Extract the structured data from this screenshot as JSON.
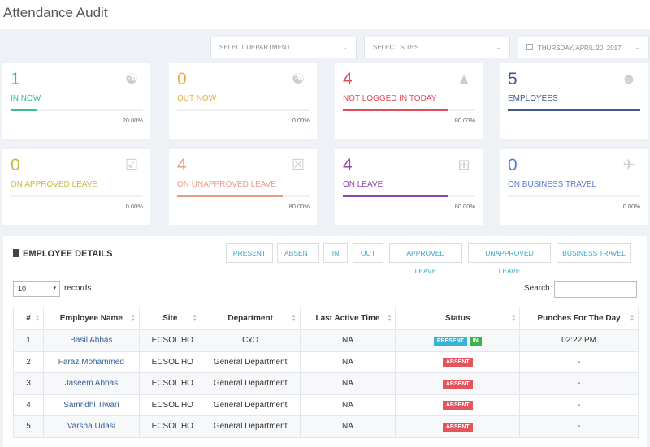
{
  "page": {
    "title": "Attendance Audit"
  },
  "filters": {
    "department": "SELECT DEPARTMENT",
    "sites": "SELECT SITES",
    "date": "THURSDAY, APRIL 20, 2017"
  },
  "colors": {
    "green": "#3bbf8a",
    "orange": "#e5c55a",
    "red": "#e34a5a",
    "navy": "#3f5a8a",
    "olive": "#c4b93e",
    "salmon": "#eb9b86",
    "purple": "#8e44ad",
    "blue": "#5b7bd5"
  },
  "cards": [
    {
      "value": "1",
      "label": "IN NOW",
      "percent": "20.00%",
      "fill": 0.2,
      "color": "#3bbf8a",
      "icon": "user-icon"
    },
    {
      "value": "0",
      "label": "OUT NOW",
      "percent": "0.00%",
      "fill": 0,
      "color": "#e3b341",
      "icon": "user-icon"
    },
    {
      "value": "4",
      "label": "NOT LOGGED IN TODAY",
      "percent": "80.00%",
      "fill": 0.8,
      "color": "#e34a5a",
      "icon": "warning-icon"
    },
    {
      "value": "5",
      "label": "EMPLOYEES",
      "percent": "",
      "fill": 1,
      "color": "#3f5a8a",
      "icon": "users-icon"
    },
    {
      "value": "0",
      "label": "ON APPROVED LEAVE",
      "percent": "0.00%",
      "fill": 0,
      "color": "#c4b93e",
      "icon": "calendar-check-icon"
    },
    {
      "value": "4",
      "label": "ON UNAPPROVED LEAVE",
      "percent": "80.00%",
      "fill": 0.8,
      "color": "#eb9b86",
      "icon": "calendar-x-icon"
    },
    {
      "value": "4",
      "label": "ON LEAVE",
      "percent": "80.00%",
      "fill": 0.8,
      "color": "#8e44ad",
      "icon": "calendar-plus-icon"
    },
    {
      "value": "0",
      "label": "ON BUSINESS TRAVEL",
      "percent": "0.00%",
      "fill": 0,
      "color": "#5b7bd5",
      "icon": "plane-icon"
    }
  ],
  "details": {
    "title": "EMPLOYEE DETAILS",
    "buttons": [
      "PRESENT",
      "ABSENT",
      "IN",
      "OUT",
      "APPROVED LEAVE",
      "UNAPPROVED LEAVE",
      "BUSINESS TRAVEL"
    ],
    "page_length": "10",
    "records_label": "records",
    "search_label": "Search:",
    "columns": [
      "#",
      "Employee Name",
      "Site",
      "Department",
      "Last Active Time",
      "Status",
      "Punches For The Day"
    ],
    "rows": [
      {
        "num": "1",
        "name": "Basil Abbas",
        "site": "TECSOL HO",
        "department": "CxO",
        "last_active": "NA",
        "status": [
          "PRESENT",
          "IN"
        ],
        "punches": "02:22 PM"
      },
      {
        "num": "2",
        "name": "Faraz Mohammed",
        "site": "TECSOL HO",
        "department": "General Department",
        "last_active": "NA",
        "status": [
          "ABSENT"
        ],
        "punches": "-"
      },
      {
        "num": "3",
        "name": "Jaseem Abbas",
        "site": "TECSOL HO",
        "department": "General Department",
        "last_active": "NA",
        "status": [
          "ABSENT"
        ],
        "punches": "-"
      },
      {
        "num": "4",
        "name": "Samridhi Tiwari",
        "site": "TECSOL HO",
        "department": "General Department",
        "last_active": "NA",
        "status": [
          "ABSENT"
        ],
        "punches": "-"
      },
      {
        "num": "5",
        "name": "Varsha Udasi",
        "site": "TECSOL HO",
        "department": "General Department",
        "last_active": "NA",
        "status": [
          "ABSENT"
        ],
        "punches": "-"
      }
    ]
  }
}
